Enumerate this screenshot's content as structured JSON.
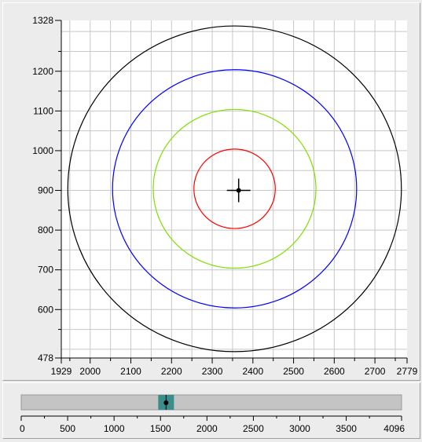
{
  "plot": {
    "y_axis": {
      "ticks": [
        "1328",
        "1200",
        "1100",
        "1000",
        "900",
        "800",
        "700",
        "600",
        "478"
      ],
      "min": 478,
      "max": 1328
    },
    "x_axis": {
      "ticks": [
        "1929",
        "2000",
        "2100",
        "2200",
        "2300",
        "2400",
        "2500",
        "2600",
        "2700",
        "2779"
      ],
      "min": 1929,
      "max": 2779
    },
    "grid": true,
    "center_marker": {
      "x": 2365,
      "y": 900
    },
    "circles": [
      {
        "color": "#000000",
        "cx": 2355,
        "cy": 904,
        "r": 410
      },
      {
        "color": "#0000ff",
        "cx": 2355,
        "cy": 904,
        "r": 300
      },
      {
        "color": "#7fe000",
        "cx": 2355,
        "cy": 904,
        "r": 200
      },
      {
        "color": "#ff0000",
        "cx": 2355,
        "cy": 904,
        "r": 100
      }
    ]
  },
  "slider": {
    "ticks": [
      "0",
      "500",
      "1000",
      "1500",
      "2000",
      "2500",
      "3000",
      "3500",
      "4096"
    ],
    "min": 0,
    "max": 4096,
    "value": 1560,
    "thumb_color": "#3c8c8c"
  }
}
